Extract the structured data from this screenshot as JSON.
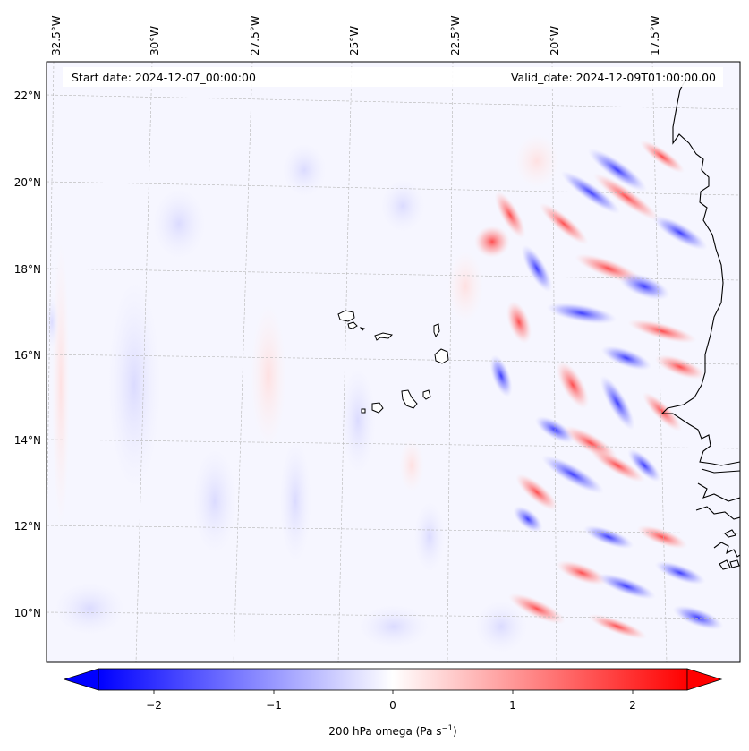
{
  "map": {
    "start_label": "Start date: 2024-12-07_00:00:00",
    "valid_label": "Valid_date: 2024-12-09T01:00:00.00",
    "lon_ticks": [
      "32.5°W",
      "30°W",
      "27.5°W",
      "25°W",
      "22.5°W",
      "20°W",
      "17.5°W"
    ],
    "lat_ticks": [
      "22°N",
      "20°N",
      "18°N",
      "16°N",
      "14°N",
      "12°N",
      "10°N"
    ],
    "lon_values": [
      -32.5,
      -30,
      -27.5,
      -25,
      -22.5,
      -20,
      -17.5
    ],
    "lat_values": [
      22,
      20,
      18,
      16,
      14,
      12,
      10
    ],
    "lon_range": [
      -33.0,
      -15.3
    ],
    "lat_range": [
      8.9,
      22.8
    ],
    "gridlines": true,
    "features": [
      "Cape Verde islands",
      "West African coastline"
    ]
  },
  "colorbar": {
    "label_main": "200 hPa omega (Pa s",
    "label_sup": "−1",
    "label_end": ")",
    "ticks": [
      "−2",
      "−1",
      "0",
      "1",
      "2"
    ],
    "tick_values": [
      -2,
      -1,
      0,
      1,
      2
    ],
    "range": [
      -2.5,
      2.5
    ],
    "extend": "both",
    "colors": {
      "min": "#0000ff",
      "mid": "#ffffff",
      "max": "#ff0000"
    }
  }
}
